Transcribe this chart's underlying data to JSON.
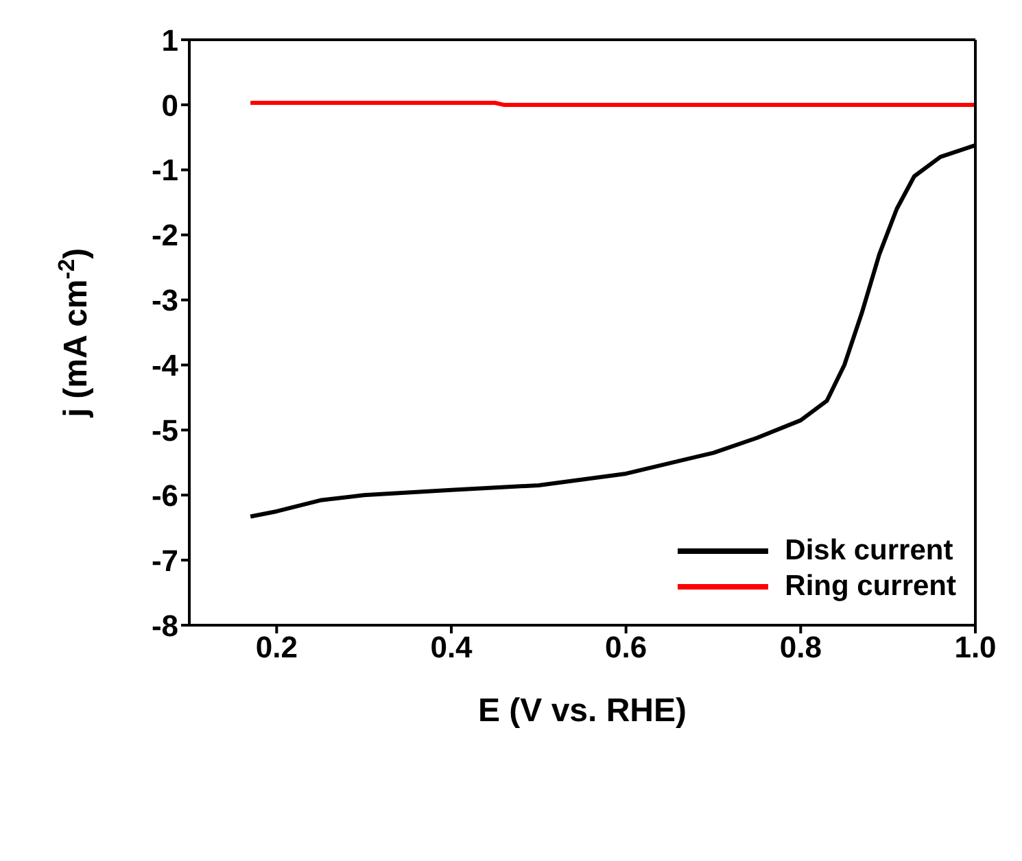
{
  "chart_data": {
    "type": "line",
    "xlabel": "E (V vs. RHE)",
    "ylabel": "j (mA cm$^{-2}$)",
    "xlim": [
      0.1,
      1.0
    ],
    "xticks": [
      0.2,
      0.4,
      0.6,
      0.8,
      {
        "value": 1,
        "label": "1.0"
      }
    ],
    "ylim": [
      -8,
      1
    ],
    "yticks": [
      -8,
      -7,
      -6,
      -5,
      -4,
      -3,
      -2,
      -1,
      0,
      1
    ],
    "grid": false,
    "legend": "bottom right",
    "marker": "none",
    "line_style": "solid",
    "series": [
      {
        "name": "Disk current",
        "color": "#000000",
        "x": [
          0.17,
          0.2,
          0.25,
          0.3,
          0.4,
          0.5,
          0.6,
          0.7,
          0.75,
          0.8,
          0.83,
          0.85,
          0.87,
          0.89,
          0.91,
          0.93,
          0.96,
          1.0
        ],
        "values": [
          -6.33,
          -6.25,
          -6.08,
          -6.0,
          -5.92,
          -5.85,
          -5.67,
          -5.35,
          -5.12,
          -4.85,
          -4.55,
          -4.0,
          -3.2,
          -2.3,
          -1.6,
          -1.1,
          -0.8,
          -0.62
        ]
      },
      {
        "name": "Ring current",
        "color": "#ff0000",
        "x": [
          0.17,
          0.45,
          0.46,
          1.0
        ],
        "values": [
          0.03,
          0.03,
          0.0,
          0.0
        ]
      }
    ]
  }
}
